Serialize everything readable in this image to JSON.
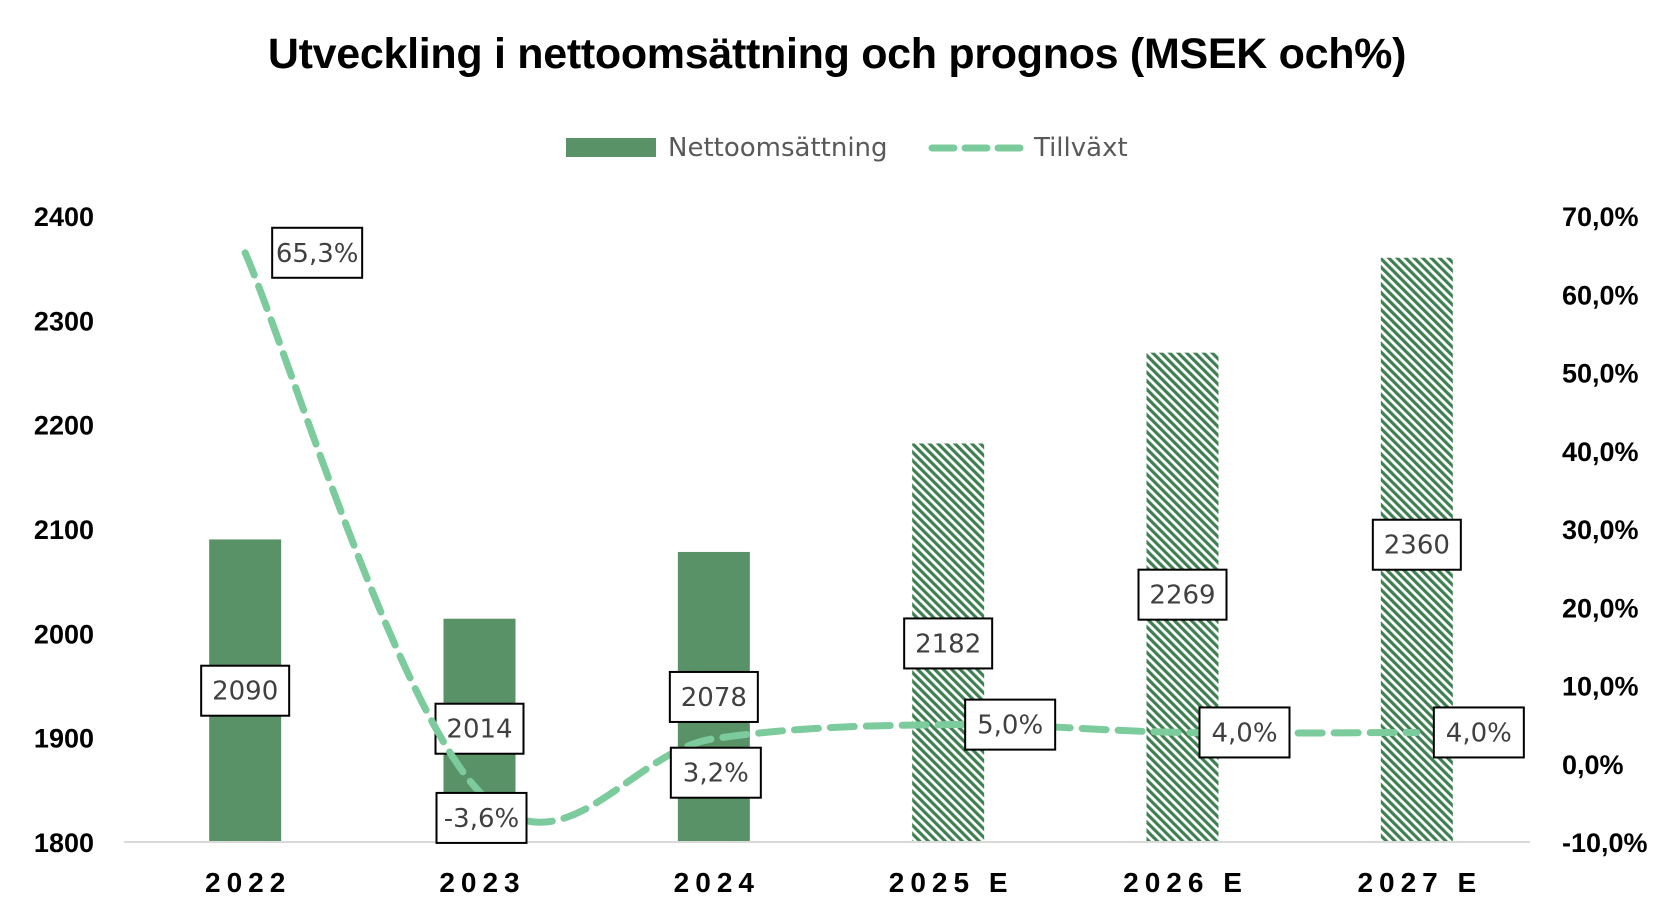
{
  "chart_data": {
    "type": "bar",
    "title": "Utveckling i nettoomsättning och prognos (MSEK och%)",
    "categories": [
      "2022",
      "2023",
      "2024",
      "2025 E",
      "2026 E",
      "2027 E"
    ],
    "series": [
      {
        "name": "Nettoomsättning",
        "type": "bar",
        "axis": "left",
        "values": [
          2090,
          2014,
          2078,
          2182,
          2269,
          2360
        ],
        "labels": [
          "2090",
          "2014",
          "2078",
          "2182",
          "2269",
          "2360"
        ],
        "forecast": [
          false,
          false,
          false,
          true,
          true,
          true
        ],
        "color": "#5a9268"
      },
      {
        "name": "Tillväxt",
        "type": "line",
        "style": "dashed",
        "axis": "right",
        "values": [
          65.3,
          -3.6,
          3.2,
          5.0,
          4.0,
          4.0
        ],
        "labels": [
          "65,3%",
          "-3,6%",
          "3,2%",
          "5,0%",
          "4,0%",
          "4,0%"
        ],
        "color": "#7ccb9c"
      }
    ],
    "y_left": {
      "ylim": [
        1800,
        2400
      ],
      "ticks": [
        "2400",
        "2300",
        "2200",
        "2100",
        "2000",
        "1900",
        "1800"
      ]
    },
    "y_right": {
      "ylim": [
        -10,
        70
      ],
      "ticks": [
        "70,0%",
        "60,0%",
        "50,0%",
        "40,0%",
        "30,0%",
        "20,0%",
        "10,0%",
        "0,0%",
        "-10,0%"
      ]
    },
    "legend_position": "top-center",
    "grid": false
  }
}
